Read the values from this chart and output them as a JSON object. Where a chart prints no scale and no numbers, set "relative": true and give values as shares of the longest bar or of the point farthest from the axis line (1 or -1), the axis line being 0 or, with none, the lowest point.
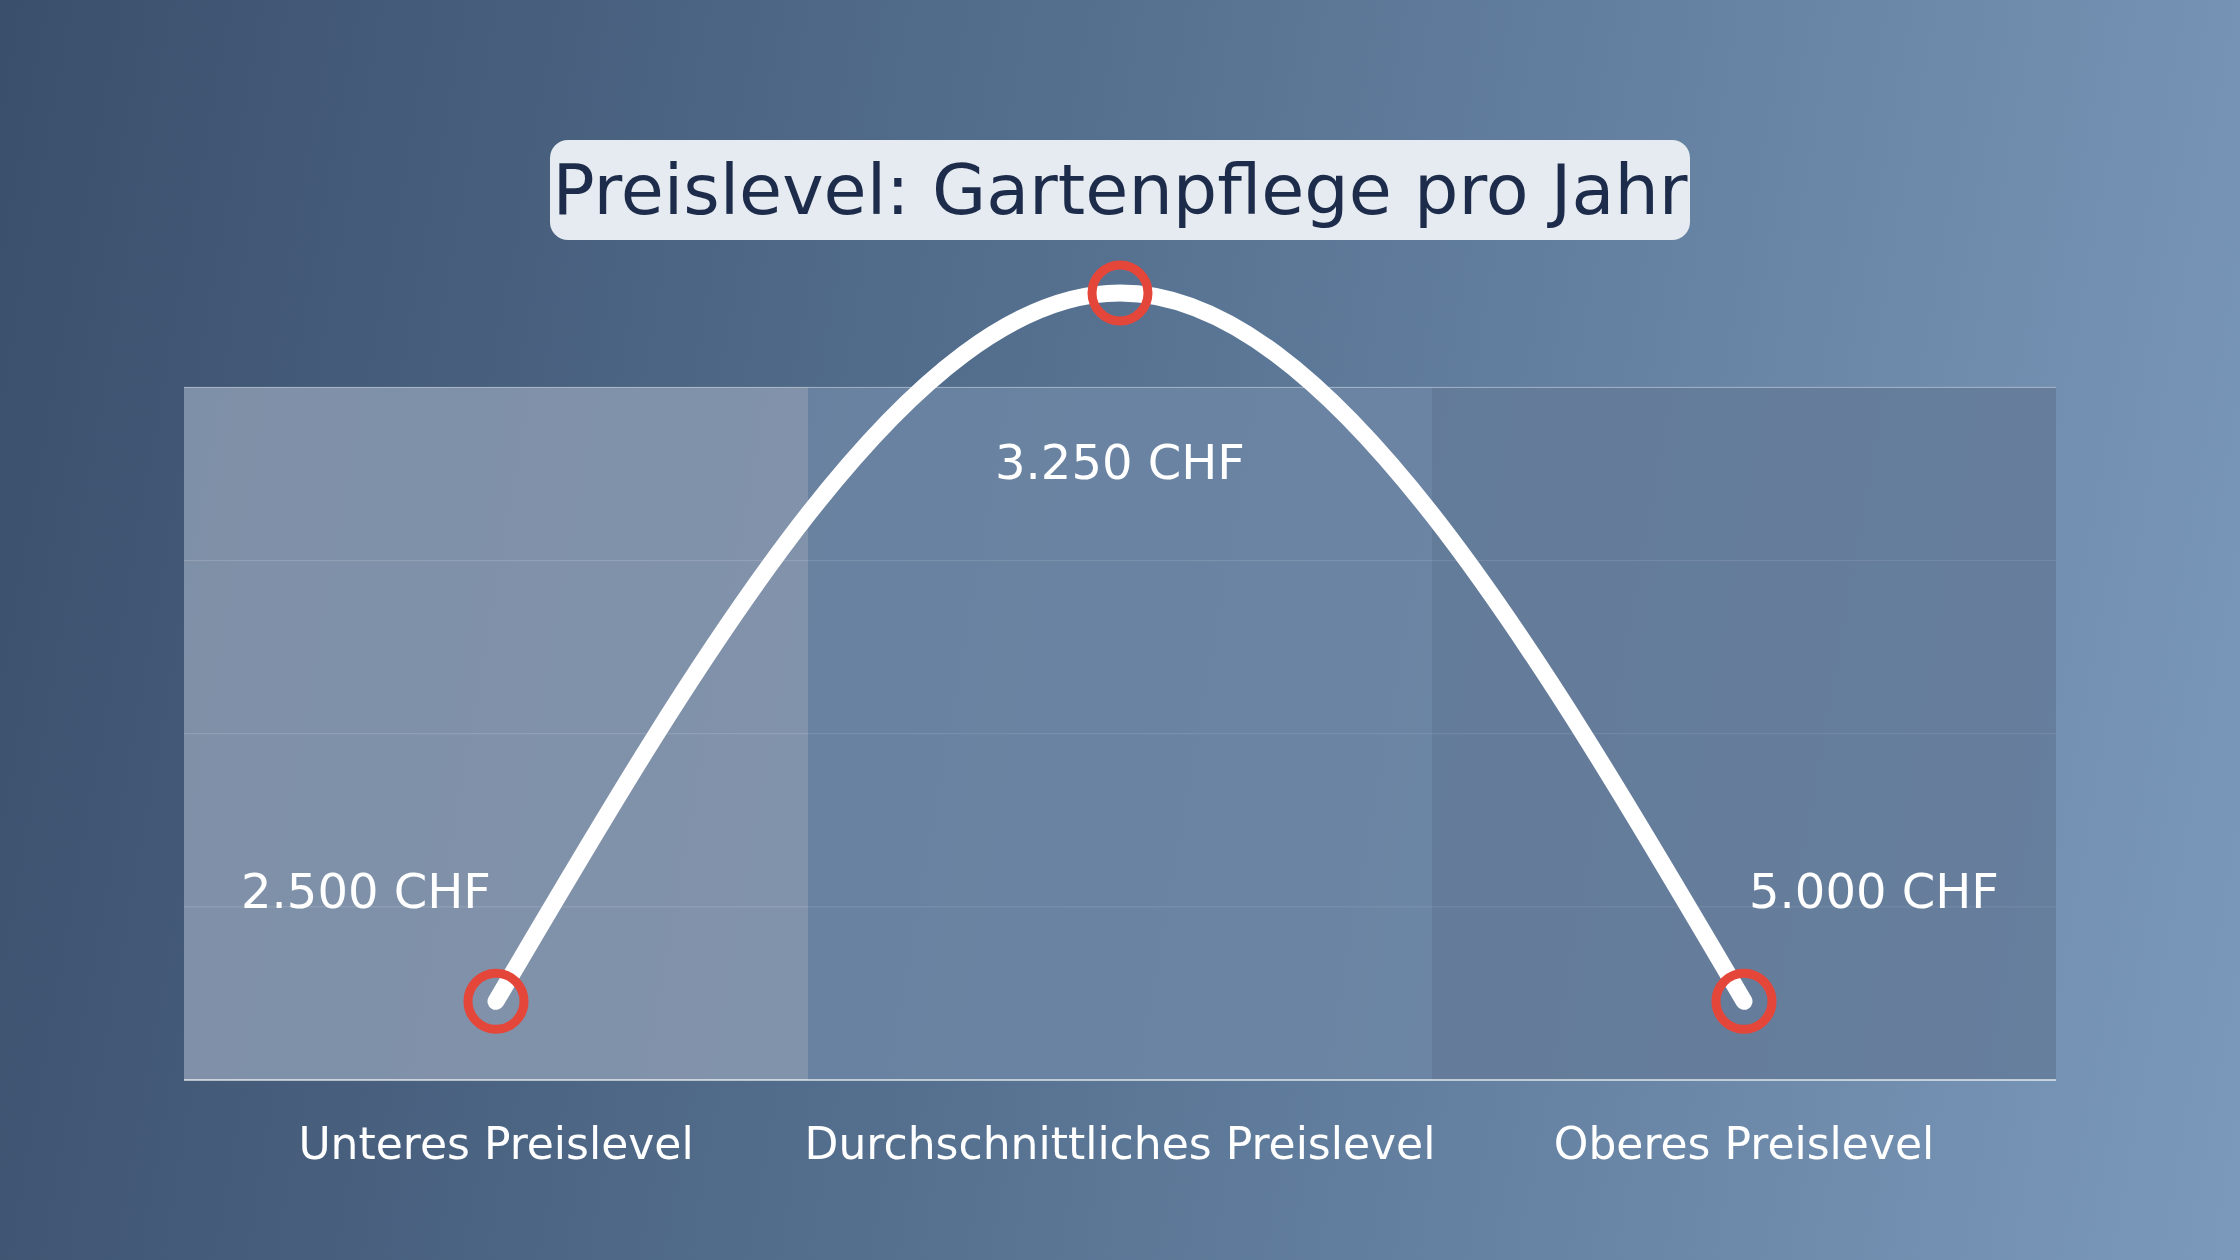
{
  "chart_data": {
    "type": "line",
    "title": "Preislevel: Gartenpflege pro Jahr",
    "relative": true,
    "categories": [
      "Unteres Preislevel",
      "Durchschnittliches Preislevel",
      "Oberes Preislevel"
    ],
    "series": [
      {
        "color": "#ffffff",
        "values": [
          0.1,
          1,
          0.1
        ]
      },
      {
        "type": "scatter",
        "color": "#e5463a",
        "marker": "circle",
        "values": [
          0.1,
          1,
          0.1
        ]
      }
    ],
    "grid": "y",
    "legend": false,
    "bands": [
      {
        "axis": "x",
        "from": "Unteres Preislevel",
        "to": "Unteres Preislevel",
        "color": "#8a9ab0"
      },
      {
        "axis": "x",
        "from": "Durchschnittliches Preislevel",
        "to": "Durchschnittliches Preislevel",
        "color": "#6d86a4"
      },
      {
        "axis": "x",
        "from": "Oberes Preislevel",
        "to": "Oberes Preislevel",
        "color": "#647b99"
      }
    ],
    "annotations": [
      "2.500 CHF",
      "3.250 CHF",
      "5.000 CHF"
    ]
  }
}
